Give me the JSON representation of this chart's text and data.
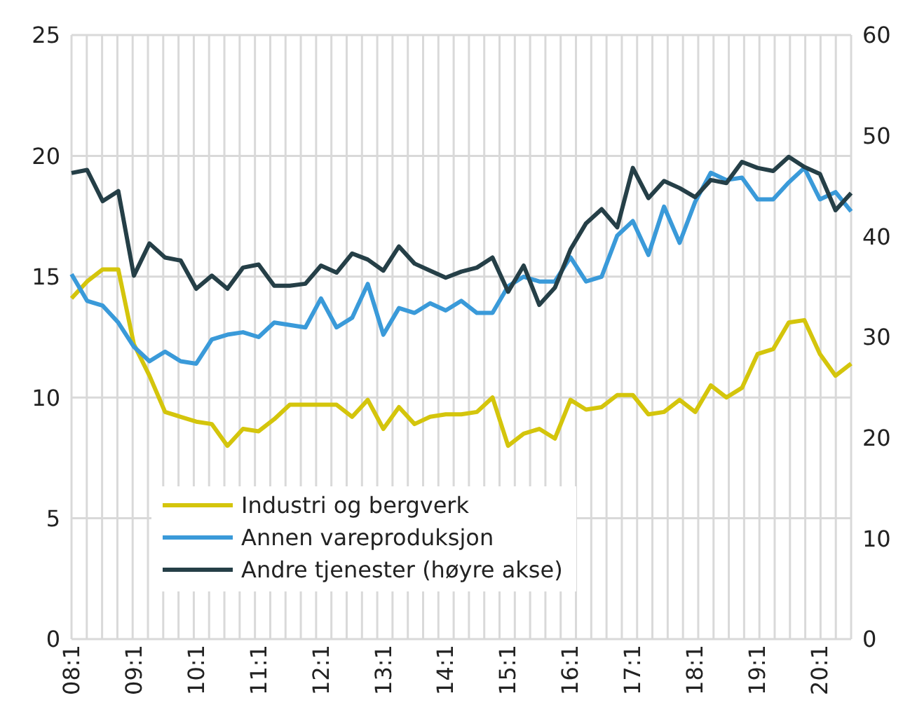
{
  "chart_data": {
    "type": "line",
    "categories": [
      "08:1",
      null,
      null,
      null,
      "09:1",
      null,
      null,
      null,
      "10:1",
      null,
      null,
      null,
      "11:1",
      null,
      null,
      null,
      "12:1",
      null,
      null,
      null,
      "13:1",
      null,
      null,
      null,
      "14:1",
      null,
      null,
      null,
      "15:1",
      null,
      null,
      null,
      "16:1",
      null,
      null,
      null,
      "17:1",
      null,
      null,
      null,
      "18:1",
      null,
      null,
      null,
      "19:1",
      null,
      null,
      null,
      "20:1",
      null,
      null
    ],
    "series": [
      {
        "name": "Industri og bergverk",
        "color": "#d4c50c",
        "values": [
          14.1,
          14.8,
          15.3,
          15.3,
          12.2,
          10.9,
          9.4,
          9.2,
          9.0,
          8.9,
          8.0,
          8.7,
          8.6,
          9.1,
          9.7,
          9.7,
          9.7,
          9.7,
          9.2,
          9.9,
          8.7,
          9.6,
          8.9,
          9.2,
          9.3,
          9.3,
          9.4,
          10.0,
          8.0,
          8.5,
          8.7,
          8.3,
          9.9,
          9.5,
          9.6,
          10.1,
          10.1,
          9.3,
          9.4,
          9.9,
          9.4,
          10.5,
          10.0,
          10.4,
          11.8,
          12.0,
          13.1,
          13.2,
          11.8,
          10.9,
          11.4
        ]
      },
      {
        "name": "Annen vareproduksjon",
        "color": "#3a9ad9",
        "values": [
          15.1,
          14.0,
          13.8,
          13.1,
          12.1,
          11.5,
          11.9,
          11.5,
          11.4,
          12.4,
          12.6,
          12.7,
          12.5,
          13.1,
          13.0,
          12.9,
          14.1,
          12.9,
          13.3,
          14.7,
          12.6,
          13.7,
          13.5,
          13.9,
          13.6,
          14.0,
          13.5,
          13.5,
          14.6,
          15.0,
          14.8,
          14.8,
          15.8,
          14.8,
          15.0,
          16.7,
          17.3,
          15.9,
          17.9,
          16.4,
          18.1,
          19.3,
          19.0,
          19.1,
          18.2,
          18.2,
          18.9,
          19.5,
          18.2,
          18.5,
          17.7
        ]
      },
      {
        "name": "Andre tjenester (høyre akse)",
        "color": "#253f47",
        "axis": "y2",
        "values": [
          46.3,
          46.6,
          43.5,
          44.5,
          36.1,
          39.3,
          37.9,
          37.6,
          34.8,
          36.1,
          34.8,
          36.9,
          37.2,
          35.1,
          35.1,
          35.3,
          37.1,
          36.4,
          38.3,
          37.7,
          36.6,
          39.0,
          37.3,
          36.6,
          35.9,
          36.5,
          36.9,
          37.9,
          34.5,
          37.1,
          33.2,
          34.9,
          38.7,
          41.3,
          42.7,
          40.9,
          46.8,
          43.8,
          45.5,
          44.8,
          43.9,
          45.6,
          45.3,
          47.4,
          46.8,
          46.5,
          47.9,
          46.9,
          46.2,
          42.6,
          44.3
        ]
      }
    ],
    "ylim": [
      0,
      25
    ],
    "yticks": [
      0,
      5,
      10,
      15,
      20,
      25
    ],
    "y2lim": [
      0,
      60
    ],
    "y2ticks": [
      0,
      10,
      20,
      30,
      40,
      50,
      60
    ],
    "grid": true,
    "legend": "bottom left",
    "line_style": "solid",
    "marker": "none"
  }
}
